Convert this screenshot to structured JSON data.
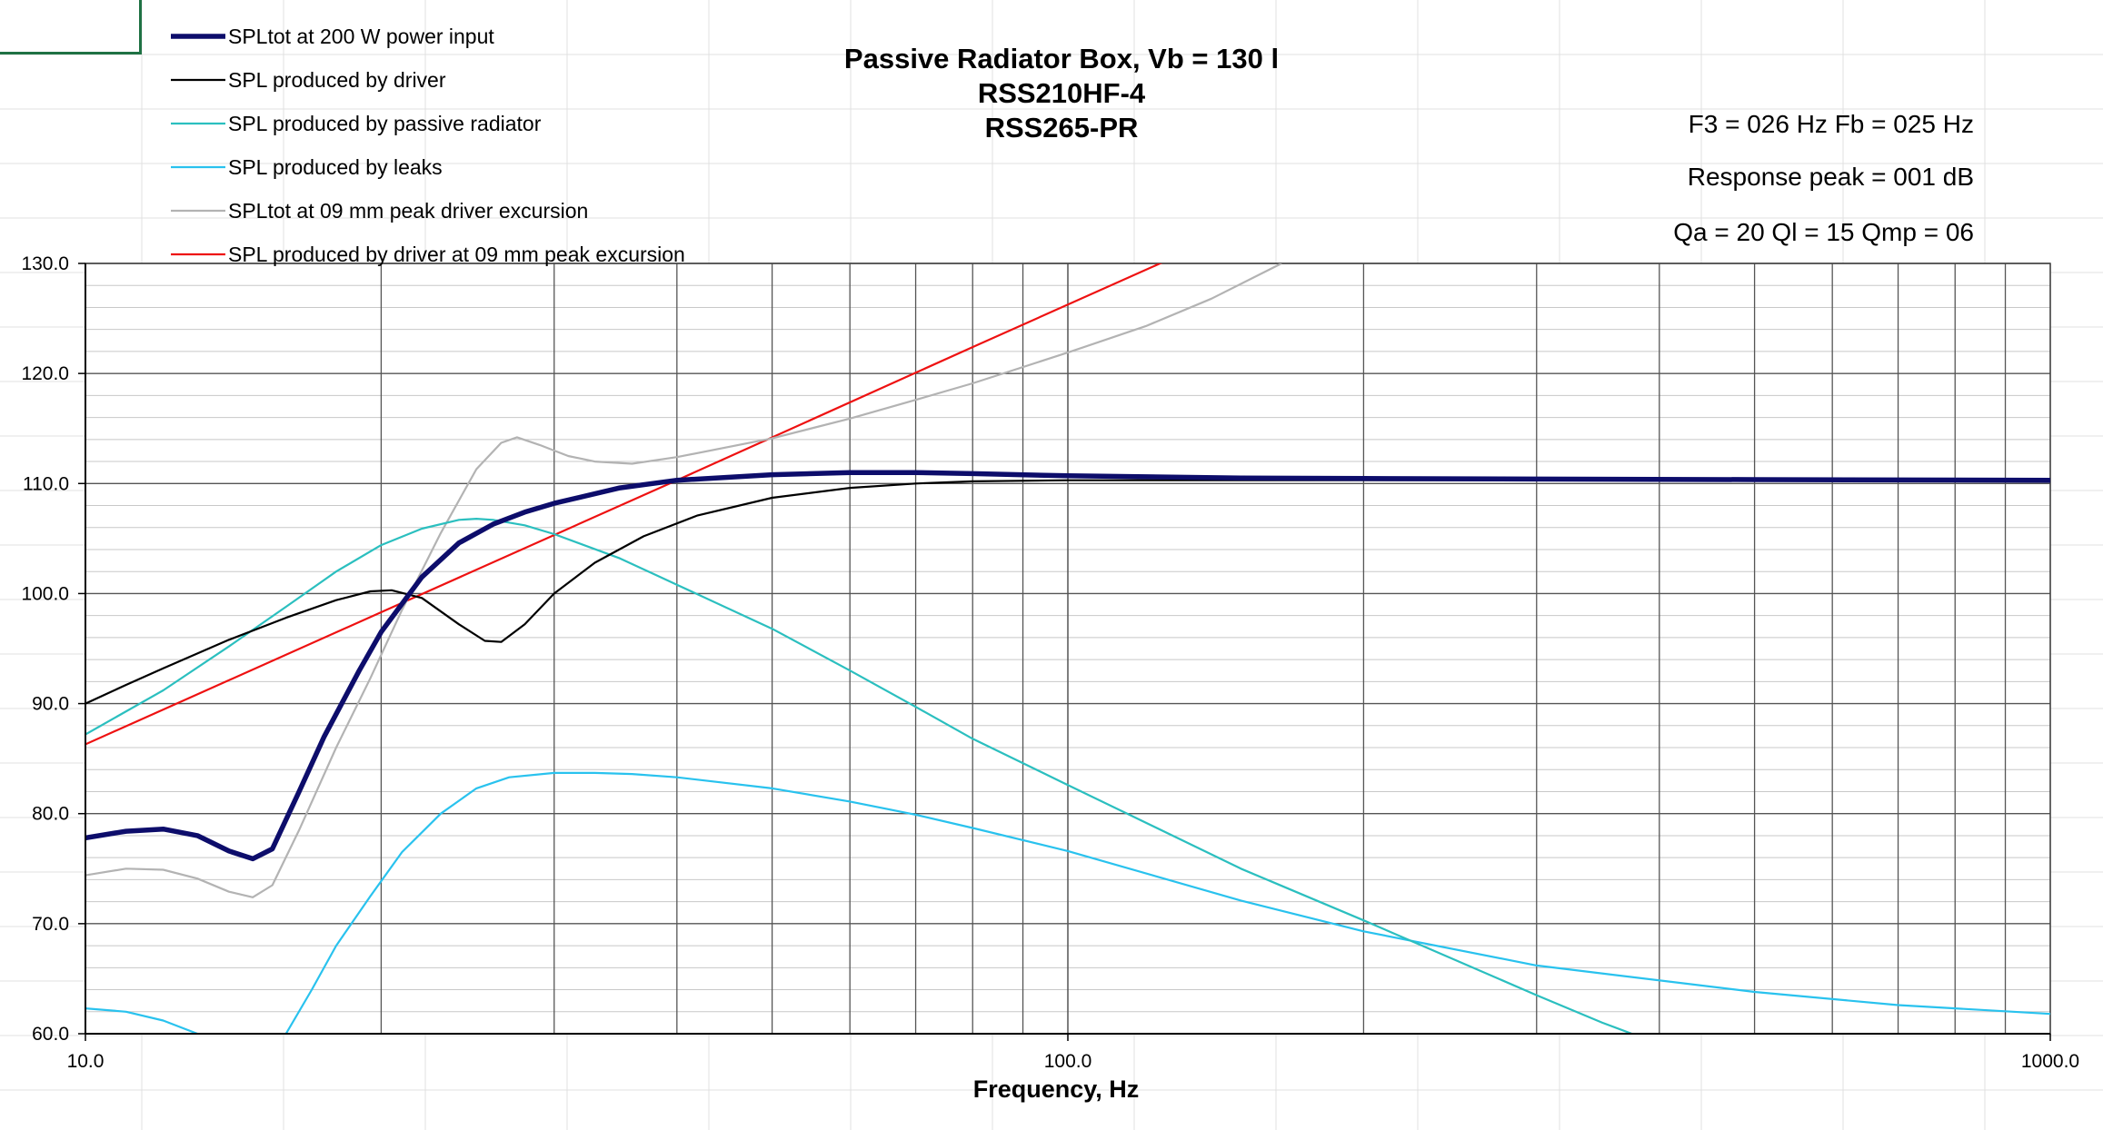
{
  "chart_data": {
    "type": "line",
    "title_lines": [
      "Passive Radiator Box, Vb = 130 l",
      "RSS210HF-4",
      "RSS265-PR"
    ],
    "xlabel": "Frequency, Hz",
    "ylabel": "",
    "x_scale": "log",
    "xlim": [
      10,
      1000
    ],
    "ylim": [
      60,
      130
    ],
    "x_tick_labels": [
      "10.0",
      "100.0",
      "1000.0"
    ],
    "y_ticks": [
      60,
      70,
      80,
      90,
      100,
      110,
      120,
      130
    ],
    "y_tick_labels": [
      "60.0",
      "70.0",
      "80.0",
      "90.0",
      "100.0",
      "110.0",
      "120.0",
      "130.0"
    ],
    "grid": true,
    "legend_position": "top-left",
    "info": [
      "F3 = 026 Hz  Fb = 025 Hz",
      "Response peak = 001 dB",
      "Qa = 20  Ql = 15  Qmp = 06"
    ],
    "series": [
      {
        "name": "SPLtot at 200 W power input",
        "color": "#0d0d6b",
        "width": "thick",
        "points": [
          [
            10,
            77.8
          ],
          [
            11,
            78.4
          ],
          [
            12,
            78.6
          ],
          [
            13,
            78.0
          ],
          [
            14,
            76.6
          ],
          [
            14.8,
            75.9
          ],
          [
            15.5,
            76.8
          ],
          [
            16.5,
            82
          ],
          [
            17.5,
            87
          ],
          [
            19,
            93
          ],
          [
            20,
            96.5
          ],
          [
            22,
            101.5
          ],
          [
            24,
            104.6
          ],
          [
            26,
            106.3
          ],
          [
            28,
            107.4
          ],
          [
            30,
            108.2
          ],
          [
            35,
            109.6
          ],
          [
            40,
            110.3
          ],
          [
            50,
            110.8
          ],
          [
            60,
            111.0
          ],
          [
            70,
            111.0
          ],
          [
            80,
            110.9
          ],
          [
            100,
            110.7
          ],
          [
            150,
            110.5
          ],
          [
            200,
            110.45
          ],
          [
            300,
            110.4
          ],
          [
            500,
            110.35
          ],
          [
            1000,
            110.3
          ]
        ]
      },
      {
        "name": "SPL produced by driver",
        "color": "#000000",
        "width": "thin",
        "points": [
          [
            10,
            90
          ],
          [
            11,
            91.7
          ],
          [
            12,
            93.2
          ],
          [
            14,
            95.8
          ],
          [
            16,
            97.8
          ],
          [
            18,
            99.4
          ],
          [
            19.5,
            100.2
          ],
          [
            20.5,
            100.3
          ],
          [
            22,
            99.6
          ],
          [
            24,
            97.2
          ],
          [
            25.5,
            95.7
          ],
          [
            26.5,
            95.6
          ],
          [
            28,
            97.2
          ],
          [
            30,
            100
          ],
          [
            33,
            102.8
          ],
          [
            37,
            105.2
          ],
          [
            42,
            107.1
          ],
          [
            50,
            108.7
          ],
          [
            60,
            109.6
          ],
          [
            70,
            110.0
          ],
          [
            80,
            110.2
          ],
          [
            100,
            110.3
          ],
          [
            200,
            110.3
          ],
          [
            1000,
            110.3
          ]
        ]
      },
      {
        "name": "SPL produced by passive radiator",
        "color": "#2bbfbf",
        "width": "thin",
        "points": [
          [
            10,
            87.2
          ],
          [
            12,
            91.2
          ],
          [
            14,
            95.2
          ],
          [
            16,
            98.8
          ],
          [
            18,
            102
          ],
          [
            20,
            104.4
          ],
          [
            22,
            105.9
          ],
          [
            24,
            106.7
          ],
          [
            25,
            106.8
          ],
          [
            26,
            106.7
          ],
          [
            28,
            106.2
          ],
          [
            30,
            105.4
          ],
          [
            35,
            103.2
          ],
          [
            40,
            100.8
          ],
          [
            50,
            96.8
          ],
          [
            60,
            93.0
          ],
          [
            70,
            89.7
          ],
          [
            80,
            86.8
          ],
          [
            100,
            82.6
          ],
          [
            150,
            75.0
          ],
          [
            200,
            70.3
          ],
          [
            300,
            63.5
          ],
          [
            350,
            61.0
          ],
          [
            375,
            60
          ]
        ]
      },
      {
        "name": "SPL produced by leaks",
        "color": "#29c2ee",
        "width": "thin",
        "points": [
          [
            10,
            62.3
          ],
          [
            11,
            62.0
          ],
          [
            12,
            61.2
          ],
          [
            13,
            60
          ]
        ],
        "points2": [
          [
            16,
            60
          ],
          [
            17,
            64
          ],
          [
            18,
            68
          ],
          [
            19.5,
            72.5
          ],
          [
            21,
            76.5
          ],
          [
            23,
            80
          ],
          [
            25,
            82.3
          ],
          [
            27,
            83.3
          ],
          [
            30,
            83.7
          ],
          [
            33,
            83.7
          ],
          [
            36,
            83.6
          ],
          [
            40,
            83.3
          ],
          [
            50,
            82.3
          ],
          [
            60,
            81.1
          ],
          [
            70,
            79.9
          ],
          [
            80,
            78.7
          ],
          [
            100,
            76.6
          ],
          [
            150,
            72.1
          ],
          [
            200,
            69.3
          ],
          [
            300,
            66.2
          ],
          [
            500,
            63.8
          ],
          [
            700,
            62.6
          ],
          [
            1000,
            61.8
          ]
        ]
      },
      {
        "name": "SPLtot at 09 mm peak driver excursion",
        "color": "#b3b3b3",
        "width": "thin",
        "points": [
          [
            10,
            74.4
          ],
          [
            11,
            75.0
          ],
          [
            12,
            74.9
          ],
          [
            13,
            74.1
          ],
          [
            14,
            72.9
          ],
          [
            14.8,
            72.4
          ],
          [
            15.5,
            73.5
          ],
          [
            16.5,
            78.5
          ],
          [
            18,
            86
          ],
          [
            19.5,
            92.3
          ],
          [
            21,
            98.5
          ],
          [
            23,
            105.5
          ],
          [
            25,
            111.3
          ],
          [
            26.5,
            113.7
          ],
          [
            27.5,
            114.2
          ],
          [
            29,
            113.5
          ],
          [
            31,
            112.5
          ],
          [
            33,
            112.0
          ],
          [
            36,
            111.8
          ],
          [
            40,
            112.4
          ],
          [
            50,
            114.1
          ],
          [
            60,
            115.9
          ],
          [
            70,
            117.6
          ],
          [
            80,
            119.1
          ],
          [
            100,
            121.9
          ],
          [
            120,
            124.3
          ],
          [
            140,
            126.8
          ],
          [
            165,
            130
          ]
        ]
      },
      {
        "name": "SPL produced by driver at 09 mm peak excursion",
        "color": "#ee1111",
        "width": "thin",
        "points": [
          [
            10,
            86.3
          ],
          [
            20,
            98.3
          ],
          [
            40,
            110.3
          ],
          [
            80,
            122.4
          ],
          [
            127,
            130.4
          ]
        ]
      }
    ]
  }
}
